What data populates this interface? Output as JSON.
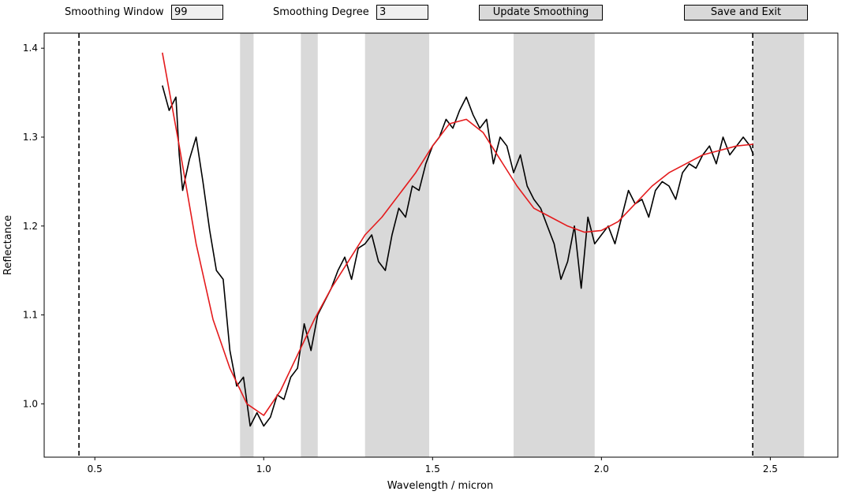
{
  "controls": {
    "window_label": "Smoothing Window",
    "window_value": "99",
    "degree_label": "Smoothing Degree",
    "degree_value": "3",
    "update_label": "Update Smoothing",
    "save_label": "Save and Exit"
  },
  "colors": {
    "data_line": "#000000",
    "smoothed_line": "#e41a1c",
    "masked_band": "#d9d9d9",
    "boundary_line": "#000000"
  },
  "chart_data": {
    "type": "line",
    "title": "",
    "xlabel": "Wavelength / micron",
    "ylabel": "Reflectance",
    "xlim": [
      0.35,
      2.7
    ],
    "ylim": [
      0.94,
      1.417
    ],
    "xticks": [
      0.5,
      1.0,
      1.5,
      2.0,
      2.5
    ],
    "yticks": [
      1.0,
      1.1,
      1.2,
      1.3,
      1.4
    ],
    "grid": false,
    "legend": "none",
    "vertical_lines": [
      0.453,
      2.448
    ],
    "masked_regions": [
      [
        0.93,
        0.97
      ],
      [
        1.11,
        1.16
      ],
      [
        1.3,
        1.49
      ],
      [
        1.74,
        1.98
      ],
      [
        2.45,
        2.6
      ]
    ],
    "series": [
      {
        "role": "data",
        "x": [
          0.7,
          0.72,
          0.74,
          0.75,
          0.76,
          0.78,
          0.8,
          0.82,
          0.84,
          0.86,
          0.88,
          0.9,
          0.92,
          0.94,
          0.96,
          0.98,
          1.0,
          1.02,
          1.04,
          1.06,
          1.08,
          1.1,
          1.12,
          1.14,
          1.16,
          1.18,
          1.2,
          1.22,
          1.24,
          1.26,
          1.28,
          1.3,
          1.32,
          1.34,
          1.36,
          1.38,
          1.4,
          1.42,
          1.44,
          1.46,
          1.48,
          1.5,
          1.52,
          1.54,
          1.56,
          1.58,
          1.6,
          1.62,
          1.64,
          1.66,
          1.68,
          1.7,
          1.72,
          1.74,
          1.76,
          1.78,
          1.8,
          1.82,
          1.84,
          1.86,
          1.88,
          1.9,
          1.92,
          1.94,
          1.96,
          1.98,
          2.0,
          2.02,
          2.04,
          2.06,
          2.08,
          2.1,
          2.12,
          2.14,
          2.16,
          2.18,
          2.2,
          2.22,
          2.24,
          2.26,
          2.28,
          2.3,
          2.32,
          2.34,
          2.36,
          2.38,
          2.4,
          2.42,
          2.44,
          2.45
        ],
        "y": [
          1.358,
          1.33,
          1.345,
          1.28,
          1.24,
          1.275,
          1.3,
          1.25,
          1.195,
          1.15,
          1.14,
          1.06,
          1.02,
          1.03,
          0.975,
          0.99,
          0.975,
          0.985,
          1.01,
          1.005,
          1.03,
          1.04,
          1.09,
          1.06,
          1.1,
          1.115,
          1.13,
          1.15,
          1.165,
          1.14,
          1.175,
          1.18,
          1.19,
          1.16,
          1.15,
          1.19,
          1.22,
          1.21,
          1.245,
          1.24,
          1.27,
          1.29,
          1.3,
          1.32,
          1.31,
          1.33,
          1.345,
          1.325,
          1.31,
          1.32,
          1.27,
          1.3,
          1.29,
          1.26,
          1.28,
          1.245,
          1.23,
          1.22,
          1.2,
          1.18,
          1.14,
          1.16,
          1.2,
          1.13,
          1.21,
          1.18,
          1.19,
          1.2,
          1.18,
          1.21,
          1.24,
          1.225,
          1.23,
          1.21,
          1.24,
          1.25,
          1.245,
          1.23,
          1.26,
          1.27,
          1.265,
          1.28,
          1.29,
          1.27,
          1.3,
          1.28,
          1.29,
          1.3,
          1.29,
          1.28
        ]
      },
      {
        "role": "smoothed",
        "x": [
          0.7,
          0.75,
          0.8,
          0.85,
          0.9,
          0.95,
          1.0,
          1.05,
          1.1,
          1.15,
          1.2,
          1.25,
          1.3,
          1.35,
          1.4,
          1.45,
          1.5,
          1.55,
          1.6,
          1.65,
          1.7,
          1.75,
          1.8,
          1.85,
          1.9,
          1.95,
          2.0,
          2.05,
          2.1,
          2.15,
          2.2,
          2.25,
          2.3,
          2.35,
          2.4,
          2.45
        ],
        "y": [
          1.395,
          1.29,
          1.18,
          1.095,
          1.04,
          1.0,
          0.987,
          1.015,
          1.055,
          1.095,
          1.13,
          1.16,
          1.19,
          1.21,
          1.235,
          1.26,
          1.29,
          1.315,
          1.32,
          1.305,
          1.275,
          1.245,
          1.22,
          1.21,
          1.2,
          1.193,
          1.195,
          1.205,
          1.225,
          1.245,
          1.26,
          1.27,
          1.28,
          1.285,
          1.29,
          1.292
        ]
      }
    ]
  }
}
